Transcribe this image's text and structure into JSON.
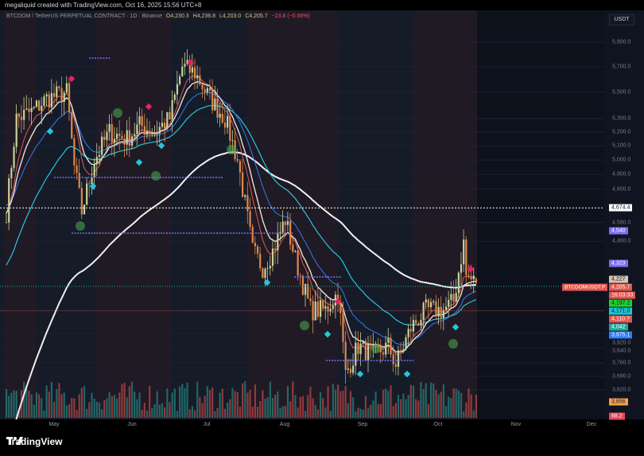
{
  "top_caption": "megaliquid created with TradingView.com, Oct 16, 2025 15:56 UTC+8",
  "legend": {
    "symbol": "BTCDOM / TetherUS PERPETUAL CONTRACT · 1D · Binance",
    "open": "O4,230.3",
    "high": "H4,236.8",
    "low": "L4,203.0",
    "close": "C4,205.7",
    "change": "−23.8 (−0.56%)"
  },
  "currency": "USDT",
  "price_axis": [
    "5,900.0",
    "5,700.0",
    "5,500.0",
    "5,300.0",
    "5,200.0",
    "5,100.0",
    "5,000.0",
    "4,900.0",
    "4,800.0",
    "4,580.0",
    "4,460.0",
    "3,920.0",
    "3,840.0",
    "3,760.0",
    "3,690.0",
    "3,620.0"
  ],
  "badges": [
    {
      "text": "4,674.4",
      "bg": "#ffffff",
      "fg": "#131722",
      "price": 4674.4
    },
    {
      "text": "4,540",
      "bg": "#7b6ff0",
      "fg": "#ffffff",
      "price": 4540
    },
    {
      "text": "4,323",
      "bg": "#7b6ff0",
      "fg": "#ffffff",
      "price": 4323
    },
    {
      "text": "4,227",
      "bg": "#d8c5b4",
      "fg": "#131722",
      "price": 4227
    },
    {
      "text": "4,205.7",
      "bg": "#e4574f",
      "fg": "#ffffff",
      "price": 4205.7
    },
    {
      "text": "16:03:33",
      "bg": "#e4574f",
      "fg": "#ffffff",
      "price": 4182
    },
    {
      "text": "4,197.2",
      "bg": "#1fd12f",
      "fg": "#131722",
      "price": 4140
    },
    {
      "text": "4,171.0",
      "bg": "#19c6d6",
      "fg": "#131722",
      "price": 4100
    },
    {
      "text": "4,110.?",
      "bg": "#e4574f",
      "fg": "#ffffff",
      "price": 4060
    },
    {
      "text": "4,042",
      "bg": "#26a69a",
      "fg": "#ffffff",
      "price": 4020
    },
    {
      "text": "3,975.1",
      "bg": "#2f7cf6",
      "fg": "#ffffff",
      "price": 3980
    },
    {
      "text": "3,856",
      "bg": "#f5a04a",
      "fg": "#131722",
      "price": 3560
    },
    {
      "text": "68.2",
      "bg": "#e4475a",
      "fg": "#ffffff",
      "price": 3490
    }
  ],
  "symbol_tag": "BTCDOMUSDT.P",
  "months": [
    "May",
    "Jun",
    "Jul",
    "Aug",
    "Sep",
    "Oct",
    "Nov",
    "Dec"
  ],
  "footer_brand": "TradingView",
  "colors": {
    "up": "#c8d29a",
    "down": "#e0884c",
    "ma_white": "#f0f0f0",
    "ma_cyan": "#26c6da",
    "ma_blue": "#2f7cf6",
    "ma_red": "#e4574f",
    "ma_green": "#4caf50"
  },
  "chart_data": {
    "type": "candlestick",
    "scale": "log",
    "ylim": [
      3560,
      6000
    ],
    "anchors_close": [
      [
        "04-12",
        4650
      ],
      [
        "04-16",
        5300
      ],
      [
        "04-22",
        5350
      ],
      [
        "04-28",
        5450
      ],
      [
        "05-06",
        5500
      ],
      [
        "05-09",
        4950
      ],
      [
        "05-12",
        4650
      ],
      [
        "05-17",
        5000
      ],
      [
        "05-23",
        5200
      ],
      [
        "05-30",
        5150
      ],
      [
        "06-04",
        5250
      ],
      [
        "06-10",
        5200
      ],
      [
        "06-16",
        5300
      ],
      [
        "06-21",
        5700
      ],
      [
        "06-26",
        5650
      ],
      [
        "07-02",
        5450
      ],
      [
        "07-08",
        5300
      ],
      [
        "07-13",
        5000
      ],
      [
        "07-16",
        4700
      ],
      [
        "07-19",
        4400
      ],
      [
        "07-23",
        4300
      ],
      [
        "07-27",
        4400
      ],
      [
        "08-01",
        4600
      ],
      [
        "08-05",
        4350
      ],
      [
        "08-11",
        4050
      ],
      [
        "08-17",
        4050
      ],
      [
        "08-22",
        4150
      ],
      [
        "08-25",
        3700
      ],
      [
        "08-30",
        3850
      ],
      [
        "09-05",
        3800
      ],
      [
        "09-11",
        3850
      ],
      [
        "09-14",
        3750
      ],
      [
        "09-20",
        3950
      ],
      [
        "09-26",
        4050
      ],
      [
        "10-03",
        4050
      ],
      [
        "10-07",
        4100
      ],
      [
        "10-11",
        4450
      ],
      [
        "10-12",
        4250
      ],
      [
        "10-16",
        4205.7
      ]
    ]
  }
}
